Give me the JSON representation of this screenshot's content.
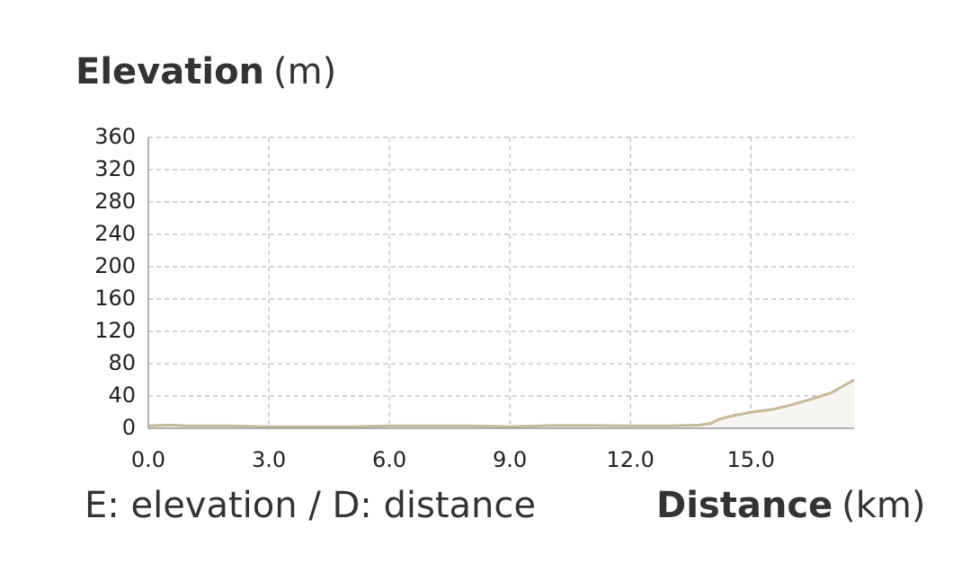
{
  "chart_data": {
    "type": "line",
    "y_label": "Elevation",
    "y_unit": "(m)",
    "x_label": "Distance",
    "x_unit": "(km)",
    "note": "E: elevation / D: distance",
    "x": [
      0,
      0.5,
      1,
      2,
      3,
      4,
      5,
      6,
      7,
      8,
      9,
      10,
      11,
      12,
      13,
      13.7,
      14,
      14.2,
      14.5,
      15,
      15.5,
      16,
      16.5,
      17,
      17.57
    ],
    "series": [
      {
        "name": "Elevation",
        "color": "#c8b89a",
        "values": [
          3,
          4,
          3,
          3,
          2,
          2,
          2,
          3,
          3,
          3,
          2,
          3.5,
          3.5,
          3,
          3,
          4,
          6,
          11,
          15,
          20,
          23,
          29,
          36,
          44,
          60
        ]
      }
    ],
    "fill": "#f7f5f1",
    "xlim": [
      0,
      17.57
    ],
    "xticks": [
      {
        "value": 0,
        "label": "0.0"
      },
      {
        "value": 3,
        "label": "3.0"
      },
      {
        "value": 6,
        "label": "6.0"
      },
      {
        "value": 9,
        "label": "9.0"
      },
      {
        "value": 12,
        "label": "12.0"
      },
      {
        "value": 15,
        "label": "15.0"
      }
    ],
    "ylim": [
      0,
      360
    ],
    "yticks": [
      0,
      40,
      80,
      120,
      160,
      200,
      240,
      280,
      320,
      360
    ],
    "grid": true
  }
}
